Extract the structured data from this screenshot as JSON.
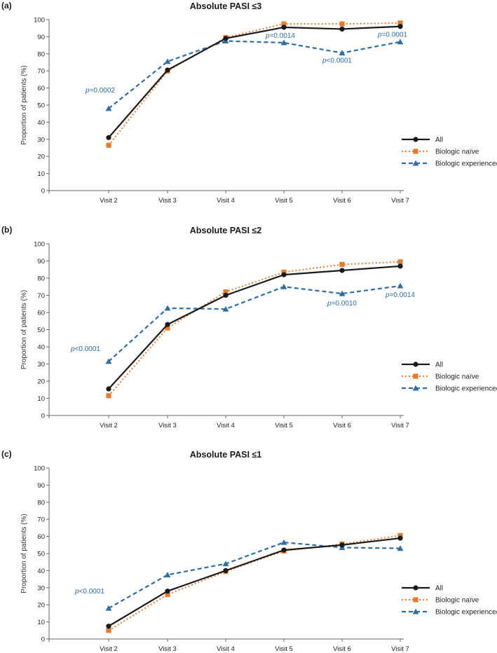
{
  "colors": {
    "all": "#1a1a1a",
    "naive": "#e87b2b",
    "experienced": "#2e6ea6",
    "axis": "#666666",
    "annotation": "#2e6ea6"
  },
  "chart_data": [
    {
      "type": "line",
      "panel_label": "(a)",
      "title": "Absolute PASI ≤3",
      "xlabel": "",
      "ylabel": "Proportion of patients (%)",
      "ylim": [
        0,
        100
      ],
      "yticks": [
        "0",
        "10",
        "20",
        "30",
        "40",
        "50",
        "60",
        "70",
        "80",
        "90",
        "100"
      ],
      "categories": [
        "Visit 2",
        "Visit 3",
        "Visit 4",
        "Visit 5",
        "Visit 6",
        "Visit 7"
      ],
      "series": [
        {
          "name": "All",
          "key": "all",
          "values": [
            31,
            70.5,
            89,
            95.5,
            94.5,
            96
          ]
        },
        {
          "name": "Biologic naïve",
          "key": "naive",
          "values": [
            26.5,
            70,
            89.5,
            97.5,
            97.5,
            98
          ]
        },
        {
          "name": "Biologic experienced",
          "key": "experienced",
          "values": [
            48,
            75.5,
            87.5,
            86.5,
            80.5,
            87
          ]
        }
      ],
      "annotations": [
        {
          "category": "Visit 2",
          "prefix": "p",
          "text": "=0.0002"
        },
        {
          "category": "Visit 5",
          "prefix": "p",
          "text": "=0.0014"
        },
        {
          "category": "Visit 6",
          "prefix": "p",
          "text": "<0.0001"
        },
        {
          "category": "Visit 7",
          "prefix": "p",
          "text": "=0.0001"
        }
      ],
      "legend": {
        "position": "bottom-right",
        "entries": [
          "All",
          "Biologic naïve",
          "Biologic experienced"
        ]
      }
    },
    {
      "type": "line",
      "panel_label": "(b)",
      "title": "Absolute PASI ≤2",
      "xlabel": "",
      "ylabel": "Proportion of patients (%)",
      "ylim": [
        0,
        100
      ],
      "yticks": [
        "0",
        "10",
        "20",
        "30",
        "40",
        "50",
        "60",
        "70",
        "80",
        "90",
        "100"
      ],
      "categories": [
        "Visit 2",
        "Visit 3",
        "Visit 4",
        "Visit 5",
        "Visit 6",
        "Visit 7"
      ],
      "series": [
        {
          "name": "All",
          "key": "all",
          "values": [
            15.5,
            53,
            70,
            82,
            84.5,
            87
          ]
        },
        {
          "name": "Biologic naïve",
          "key": "naive",
          "values": [
            11.5,
            51,
            72,
            83.5,
            88,
            89.5
          ]
        },
        {
          "name": "Biologic experienced",
          "key": "experienced",
          "values": [
            31.5,
            62.5,
            62,
            75,
            71,
            75.5
          ]
        }
      ],
      "annotations": [
        {
          "category": "Visit 2",
          "prefix": "p",
          "text": "<0.0001"
        },
        {
          "category": "Visit 6",
          "prefix": "p",
          "text": "=0.0010"
        },
        {
          "category": "Visit 7",
          "prefix": "p",
          "text": "=0.0014"
        }
      ],
      "legend": {
        "position": "bottom-right",
        "entries": [
          "All",
          "Biologic naïve",
          "Biologic experienced"
        ]
      }
    },
    {
      "type": "line",
      "panel_label": "(c)",
      "title": "Absolute PASI ≤1",
      "xlabel": "",
      "ylabel": "Proportion of patients (%)",
      "ylim": [
        0,
        100
      ],
      "yticks": [
        "0",
        "10",
        "20",
        "30",
        "40",
        "50",
        "60",
        "70",
        "80",
        "90",
        "100"
      ],
      "categories": [
        "Visit 2",
        "Visit 3",
        "Visit 4",
        "Visit 5",
        "Visit 6",
        "Visit 7"
      ],
      "series": [
        {
          "name": "All",
          "key": "all",
          "values": [
            7.5,
            28,
            40,
            52,
            55,
            59
          ]
        },
        {
          "name": "Biologic naïve",
          "key": "naive",
          "values": [
            5,
            26,
            39.5,
            51.5,
            55.5,
            60.5
          ]
        },
        {
          "name": "Biologic experienced",
          "key": "experienced",
          "values": [
            18,
            37.5,
            44,
            56.5,
            53.5,
            53
          ]
        }
      ],
      "annotations": [
        {
          "category": "Visit 2",
          "prefix": "p",
          "text": "<0.0001"
        }
      ],
      "legend": {
        "position": "bottom-right",
        "entries": [
          "All",
          "Biologic naïve",
          "Biologic experienced"
        ]
      }
    }
  ]
}
